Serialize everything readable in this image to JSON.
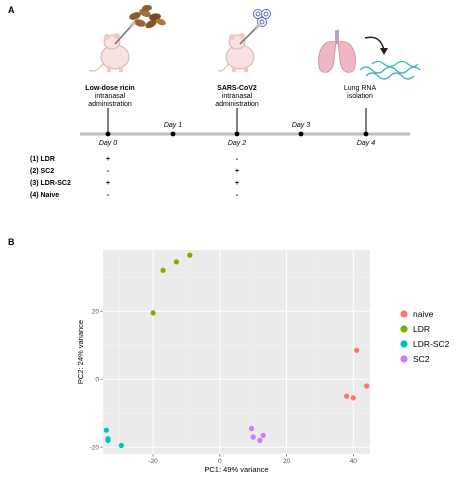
{
  "panel_a": {
    "letter": "A",
    "steps": [
      {
        "title": "Low-dose ricin",
        "subtitle": "intranasal",
        "subtitle2": "administration"
      },
      {
        "title": "SARS-CoV2",
        "subtitle": "intranasal",
        "subtitle2": "administration"
      },
      {
        "title": "",
        "subtitle": "Lung RNA",
        "subtitle2": "isolation"
      }
    ],
    "days": [
      "Day 0",
      "Day 1",
      "Day 2",
      "Day 3",
      "Day 4"
    ],
    "groups": [
      {
        "label": "(1) LDR",
        "ricin": "+",
        "sars": "-"
      },
      {
        "label": "(2) SC2",
        "ricin": "-",
        "sars": "+"
      },
      {
        "label": "(3) LDR-SC2",
        "ricin": "+",
        "sars": "+"
      },
      {
        "label": "(4) Naive",
        "ricin": "-",
        "sars": "-"
      }
    ]
  },
  "panel_b": {
    "letter": "B"
  },
  "chart_data": {
    "type": "scatter",
    "xlabel": "PC1: 49% variance",
    "ylabel": "PC2: 24% variance",
    "xlim": [
      -35,
      45
    ],
    "ylim": [
      -22,
      38
    ],
    "x_ticks": [
      -20,
      0,
      20,
      40
    ],
    "y_ticks": [
      -20,
      0,
      20
    ],
    "grid": true,
    "legend_position": "right",
    "series": [
      {
        "name": "naive",
        "color": "#f8766d",
        "x": [
          41,
          44,
          38,
          40
        ],
        "y": [
          8.5,
          -2,
          -5,
          -5.5
        ]
      },
      {
        "name": "LDR",
        "color": "#7cae00",
        "x": [
          -20,
          -17,
          -13,
          -9
        ],
        "y": [
          19.5,
          32,
          34.5,
          36.5
        ]
      },
      {
        "name": "LDR-SC2",
        "color": "#00bfc4",
        "x": [
          -34,
          -33.5,
          -33.5,
          -29.5
        ],
        "y": [
          -15,
          -17.5,
          -18,
          -19.5
        ]
      },
      {
        "name": "SC2",
        "color": "#c77cff",
        "x": [
          9.5,
          10,
          13,
          12
        ],
        "y": [
          -14.5,
          -17,
          -16.5,
          -18
        ]
      }
    ]
  }
}
